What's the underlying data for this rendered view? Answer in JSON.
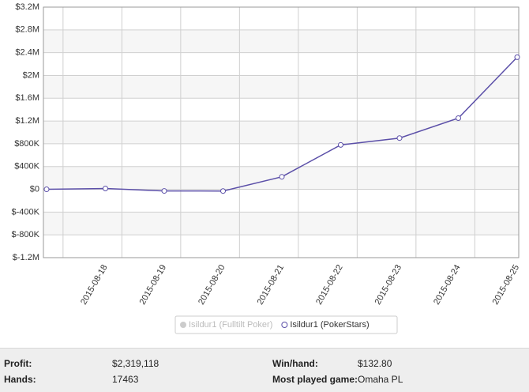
{
  "chart_data": {
    "type": "line",
    "categories": [
      null,
      "2015-08-18",
      "2015-08-19",
      "2015-08-20",
      "2015-08-21",
      "2015-08-22",
      "2015-08-23",
      "2015-08-24",
      "2015-08-25"
    ],
    "series": [
      {
        "name": "Isildur1 (PokerStars)",
        "color": "#5b4fa8",
        "values": [
          0,
          14000,
          -28000,
          -30000,
          220000,
          780000,
          900000,
          1250000,
          2320000
        ]
      }
    ],
    "hidden_series": [
      {
        "name": "Isildur1 (Fulltilt Poker)",
        "color": "#cccccc"
      }
    ],
    "ylim": [
      -1200000,
      3200000
    ],
    "yticks": [
      {
        "value": -1200000,
        "label": "$-1.2M"
      },
      {
        "value": -800000,
        "label": "$-800K"
      },
      {
        "value": -400000,
        "label": "$-400K"
      },
      {
        "value": 0,
        "label": "$0"
      },
      {
        "value": 400000,
        "label": "$400K"
      },
      {
        "value": 800000,
        "label": "$800K"
      },
      {
        "value": 1200000,
        "label": "$1.2M"
      },
      {
        "value": 1600000,
        "label": "$1.6M"
      },
      {
        "value": 2000000,
        "label": "$2M"
      },
      {
        "value": 2400000,
        "label": "$2.4M"
      },
      {
        "value": 2800000,
        "label": "$2.8M"
      },
      {
        "value": 3200000,
        "label": "$3.2M"
      }
    ],
    "grid": true
  },
  "stats": {
    "rows": [
      [
        "Profit:",
        "$2,319,118",
        "Win/hand:",
        "$132.80"
      ],
      [
        "Hands:",
        "17463",
        "Most played game:",
        "Omaha PL"
      ]
    ]
  }
}
